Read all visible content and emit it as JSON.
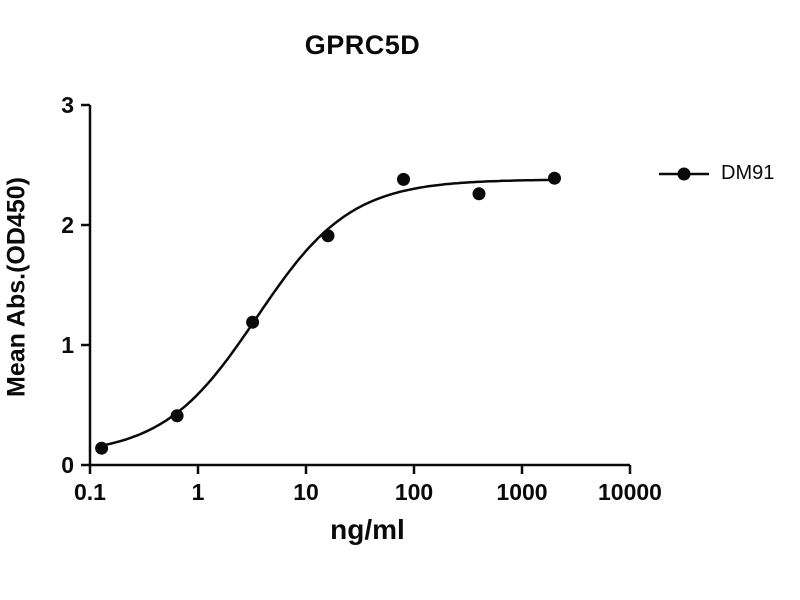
{
  "chart_data": {
    "type": "scatter",
    "title": "GPRC5D",
    "xlabel": "ng/ml",
    "ylabel": "Mean Abs.(OD450)",
    "x_scale": "log10",
    "xlim": [
      0.1,
      10000
    ],
    "ylim": [
      0,
      3
    ],
    "xticks": [
      0.1,
      1,
      10,
      100,
      1000,
      10000
    ],
    "xtick_labels": [
      "0.1",
      "1",
      "10",
      "100",
      "1000",
      "10000"
    ],
    "yticks": [
      0,
      1,
      2,
      3
    ],
    "ytick_labels": [
      "0",
      "1",
      "2",
      "3"
    ],
    "grid": "off",
    "legend_position": "right",
    "series": [
      {
        "name": "DM91",
        "marker": "filled-circle",
        "color": "#0a0a0a",
        "x": [
          0.128,
          0.64,
          3.2,
          16,
          80,
          400,
          2000
        ],
        "y": [
          0.14,
          0.41,
          1.19,
          1.91,
          2.38,
          2.26,
          2.39
        ],
        "fit": {
          "model": "4PL",
          "bottom": 0.08,
          "top": 2.38,
          "ec50": 3.5,
          "hill": 1.0
        }
      }
    ]
  }
}
